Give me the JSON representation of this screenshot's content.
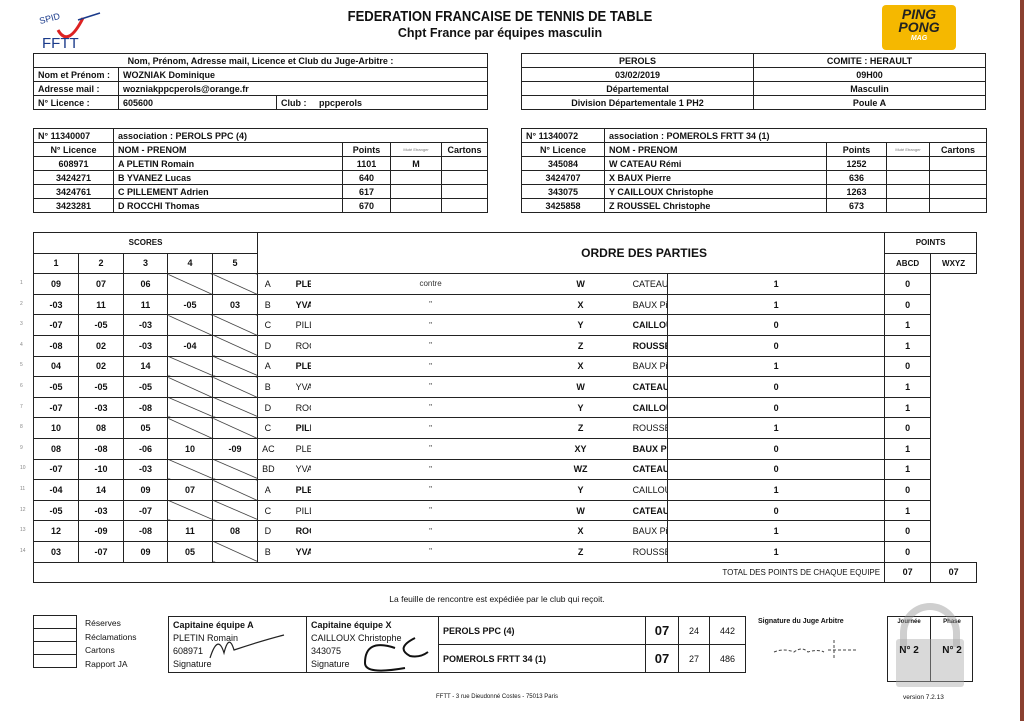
{
  "header": {
    "logo_left": "SPID FFTT",
    "title": "FEDERATION FRANCAISE DE TENNIS DE TABLE",
    "subtitle": "Chpt France par équipes masculin",
    "logo_right": "PING PONG MAG"
  },
  "referee": {
    "heading": "Nom, Prénom, Adresse mail, Licence et Club du Juge-Arbitre :",
    "name_label": "Nom et Prénom :",
    "name": "WOZNIAK   Dominique",
    "mail_label": "Adresse mail   :",
    "mail": "wozniakppcperols@orange.fr",
    "licence_label": "N° Licence     :",
    "licence": "605600",
    "club_label": "Club :",
    "club": "ppcperols"
  },
  "match": {
    "place": "PEROLS",
    "comite": "COMITE : HERAULT",
    "date": "03/02/2019",
    "time": "09H00",
    "level": "Départemental",
    "gender": "Masculin",
    "division": "Division  Départementale 1 PH2",
    "poule": "Poule A"
  },
  "team_a": {
    "number": "N° 11340007",
    "association": "association : PEROLS PPC  (4)",
    "col_licence": "N° Licence",
    "col_name": "NOM - PRENOM",
    "col_points": "Points",
    "col_mute": "Muté Etranger",
    "col_cards": "Cartons",
    "players": [
      {
        "licence": "608971",
        "name": "A   PLETIN  Romain",
        "points": "1101",
        "mute": "M"
      },
      {
        "licence": "3424271",
        "name": "B   YVANEZ  Lucas",
        "points": "640",
        "mute": ""
      },
      {
        "licence": "3424761",
        "name": "C   PILLEMENT  Adrien",
        "points": "617",
        "mute": ""
      },
      {
        "licence": "3423281",
        "name": "D   ROCCHI  Thomas",
        "points": "670",
        "mute": ""
      }
    ]
  },
  "team_b": {
    "number": "N° 11340072",
    "association": "association : POMEROLS FRTT 34  (1)",
    "col_licence": "N° Licence",
    "col_name": "NOM - PRENOM",
    "col_points": "Points",
    "col_mute": "Muté Etranger",
    "col_cards": "Cartons",
    "players": [
      {
        "licence": "345084",
        "name": "W   CATEAU  Rémi",
        "points": "1252",
        "mute": ""
      },
      {
        "licence": "3424707",
        "name": "X   BAUX  Pierre",
        "points": "636",
        "mute": ""
      },
      {
        "licence": "343075",
        "name": "Y   CAILLOUX  Christophe",
        "points": "1263",
        "mute": ""
      },
      {
        "licence": "3425858",
        "name": "Z   ROUSSEL  Christophe",
        "points": "673",
        "mute": ""
      }
    ]
  },
  "scores": {
    "heading": "SCORES",
    "sets": [
      "1",
      "2",
      "3",
      "4",
      "5"
    ],
    "order_heading": "ORDRE DES PARTIES",
    "points_heading": "POINTS",
    "col_a": "ABCD",
    "col_b": "WXYZ",
    "total_label": "TOTAL DES POINTS DE CHAQUE EQUIPE",
    "total_a": "07",
    "total_b": "07",
    "games": [
      {
        "n": "1",
        "sets": [
          "09",
          "07",
          "06",
          null,
          null
        ],
        "a": "A",
        "a_name": "PLETIN Romain",
        "a_bold": true,
        "vs": "contre",
        "b": "W",
        "b_name": "CATEAU Rémi",
        "b_bold": false,
        "pa": "1",
        "pb": "0"
      },
      {
        "n": "2",
        "sets": [
          "-03",
          "11",
          "11",
          "-05",
          "03"
        ],
        "a": "B",
        "a_name": "YVANEZ Lucas",
        "a_bold": true,
        "vs": "\"",
        "b": "X",
        "b_name": "BAUX Pierre",
        "b_bold": false,
        "pa": "1",
        "pb": "0"
      },
      {
        "n": "3",
        "sets": [
          "-07",
          "-05",
          "-03",
          null,
          null
        ],
        "a": "C",
        "a_name": "PILLEMENT Adrien",
        "a_bold": false,
        "vs": "\"",
        "b": "Y",
        "b_name": "CAILLOUX Christophe",
        "b_bold": true,
        "pa": "0",
        "pb": "1"
      },
      {
        "n": "4",
        "sets": [
          "-08",
          "02",
          "-03",
          "-04",
          null
        ],
        "a": "D",
        "a_name": "ROCCHI Thomas",
        "a_bold": false,
        "vs": "\"",
        "b": "Z",
        "b_name": "ROUSSEL Christophe",
        "b_bold": true,
        "pa": "0",
        "pb": "1"
      },
      {
        "n": "5",
        "sets": [
          "04",
          "02",
          "14",
          null,
          null
        ],
        "a": "A",
        "a_name": "PLETIN Romain",
        "a_bold": true,
        "vs": "\"",
        "b": "X",
        "b_name": "BAUX Pierre",
        "b_bold": false,
        "pa": "1",
        "pb": "0"
      },
      {
        "n": "6",
        "sets": [
          "-05",
          "-05",
          "-05",
          null,
          null
        ],
        "a": "B",
        "a_name": "YVANEZ Lucas",
        "a_bold": false,
        "vs": "\"",
        "b": "W",
        "b_name": "CATEAU Rémi",
        "b_bold": true,
        "pa": "0",
        "pb": "1"
      },
      {
        "n": "7",
        "sets": [
          "-07",
          "-03",
          "-08",
          null,
          null
        ],
        "a": "D",
        "a_name": "ROCCHI Thomas",
        "a_bold": false,
        "vs": "\"",
        "b": "Y",
        "b_name": "CAILLOUX Christophe",
        "b_bold": true,
        "pa": "0",
        "pb": "1"
      },
      {
        "n": "8",
        "sets": [
          "10",
          "08",
          "05",
          null,
          null
        ],
        "a": "C",
        "a_name": "PILLEMENT Adrien",
        "a_bold": true,
        "vs": "\"",
        "b": "Z",
        "b_name": "ROUSSEL Christophe",
        "b_bold": false,
        "pa": "1",
        "pb": "0"
      },
      {
        "n": "9",
        "sets": [
          "08",
          "-08",
          "-06",
          "10",
          "-09"
        ],
        "a": "AC",
        "a_name": "PLETIN Romain / PILLEMENT Adrien",
        "a_bold": false,
        "vs": "\"",
        "b": "XY",
        "b_name": "BAUX Pierre / CAILLOUX Christophe",
        "b_bold": true,
        "pa": "0",
        "pb": "1"
      },
      {
        "n": "10",
        "sets": [
          "-07",
          "-10",
          "-03",
          null,
          null
        ],
        "a": "BD",
        "a_name": "YVANEZ Lucas / ROCCHI Thomas",
        "a_bold": false,
        "vs": "\"",
        "b": "WZ",
        "b_name": "CATEAU Rémi / ROUSSEL Christophe",
        "b_bold": true,
        "pa": "0",
        "pb": "1"
      },
      {
        "n": "11",
        "sets": [
          "-04",
          "14",
          "09",
          "07",
          null
        ],
        "a": "A",
        "a_name": "PLETIN Romain",
        "a_bold": true,
        "vs": "\"",
        "b": "Y",
        "b_name": "CAILLOUX Christophe",
        "b_bold": false,
        "pa": "1",
        "pb": "0"
      },
      {
        "n": "12",
        "sets": [
          "-05",
          "-03",
          "-07",
          null,
          null
        ],
        "a": "C",
        "a_name": "PILLEMENT Adrien",
        "a_bold": false,
        "vs": "\"",
        "b": "W",
        "b_name": "CATEAU Rémi",
        "b_bold": true,
        "pa": "0",
        "pb": "1"
      },
      {
        "n": "13",
        "sets": [
          "12",
          "-09",
          "-08",
          "11",
          "08"
        ],
        "a": "D",
        "a_name": "ROCCHI Thomas",
        "a_bold": true,
        "vs": "\"",
        "b": "X",
        "b_name": "BAUX Pierre",
        "b_bold": false,
        "pa": "1",
        "pb": "0"
      },
      {
        "n": "14",
        "sets": [
          "03",
          "-07",
          "09",
          "05",
          null
        ],
        "a": "B",
        "a_name": "YVANEZ Lucas",
        "a_bold": true,
        "vs": "\"",
        "b": "Z",
        "b_name": "ROUSSEL Christophe",
        "b_bold": false,
        "pa": "1",
        "pb": "0"
      }
    ]
  },
  "footer": {
    "sent_note": "La feuille de rencontre est expédiée par le club qui reçoit.",
    "checks": [
      "Réserves",
      "Réclamations",
      "Cartons",
      "Rapport JA"
    ],
    "captain_a": {
      "title": "Capitaine équipe A",
      "name": "PLETIN Romain",
      "licence": "608971",
      "signature": "Signature"
    },
    "captain_b": {
      "title": "Capitaine équipe X",
      "name": "CAILLOUX Christophe",
      "licence": "343075",
      "signature": "Signature"
    },
    "results": [
      {
        "team": "PEROLS PPC  (4)",
        "score": "07",
        "sets": "24",
        "points": "442"
      },
      {
        "team": "POMEROLS FRTT 34  (1)",
        "score": "07",
        "sets": "27",
        "points": "486"
      }
    ],
    "referee_signature": "Signature du Juge Arbitre",
    "journee_label": "Journée",
    "journee": "N° 2",
    "phase_label": "Phase",
    "phase": "N° 2",
    "address": "FFTT - 3 rue Dieudonné Costes - 75013 Paris",
    "version": "version 7.2.13"
  }
}
